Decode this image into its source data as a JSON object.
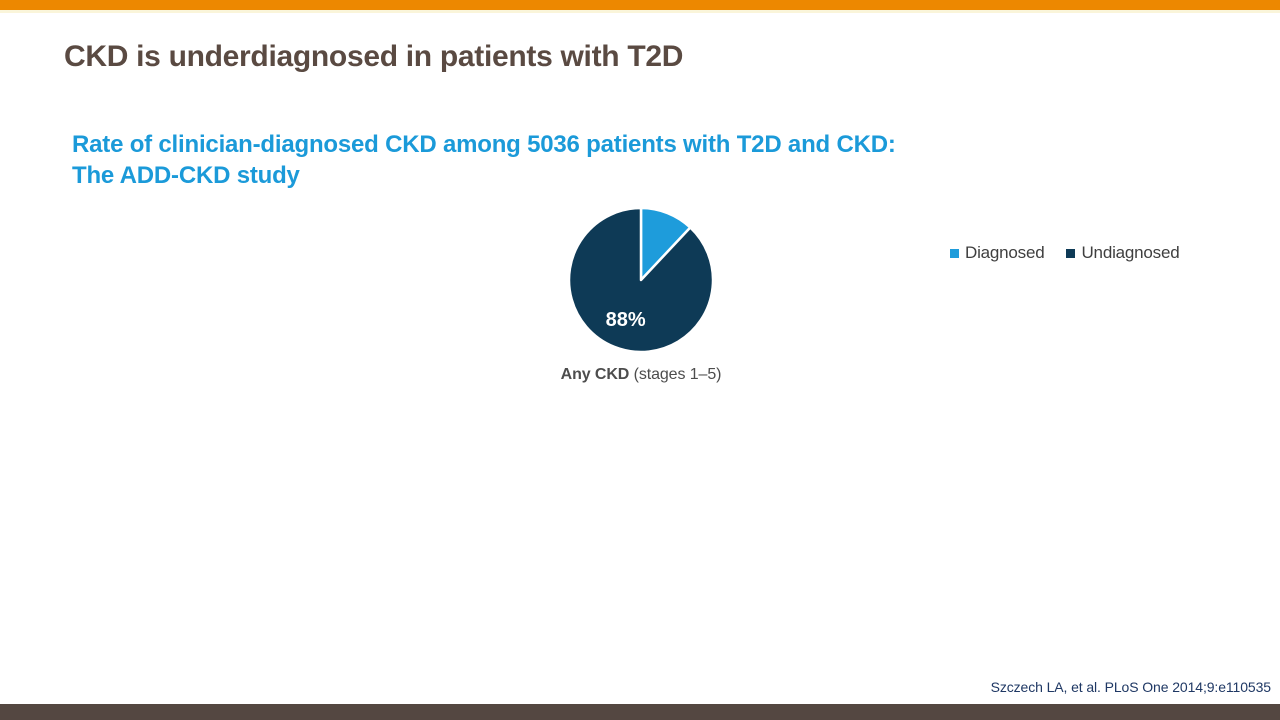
{
  "slide": {
    "title": "CKD is underdiagnosed in patients with T2D",
    "subtitle": "Rate of clinician-diagnosed CKD among 5036 patients with T2D and CKD:\nThe ADD-CKD study",
    "citation": "Szczech LA, et al. PLoS One 2014;9:e110535"
  },
  "colors": {
    "top_bar": "#ed8800",
    "top_bar_edge": "#faf5da",
    "bottom_bar": "#544741",
    "title_text": "#5a4a42",
    "subtitle_text": "#1b9ad9",
    "legend_text": "#3f3f3f",
    "caption_text": "#4d4d4d",
    "citation_text": "#1f3864",
    "diagnosed": "#1e9cdb",
    "undiagnosed": "#0e3a56"
  },
  "chart_data": {
    "type": "pie",
    "title": "Any CKD (stages 1–5)",
    "caption_bold": "Any CKD",
    "caption_rest": " (stages 1–5)",
    "start_angle_deg": 0,
    "direction": "clockwise",
    "slices": [
      {
        "label": "Diagnosed",
        "value": 12,
        "color": "#1e9cdb",
        "show_label": false,
        "data_label": "12%"
      },
      {
        "label": "Undiagnosed",
        "value": 88,
        "color": "#0e3a56",
        "show_label": true,
        "data_label": "88%"
      }
    ],
    "legend": [
      {
        "label": "Diagnosed",
        "color": "#1e9cdb"
      },
      {
        "label": "Undiagnosed",
        "color": "#0e3a56"
      }
    ],
    "legend_position": "right",
    "grid": false
  }
}
